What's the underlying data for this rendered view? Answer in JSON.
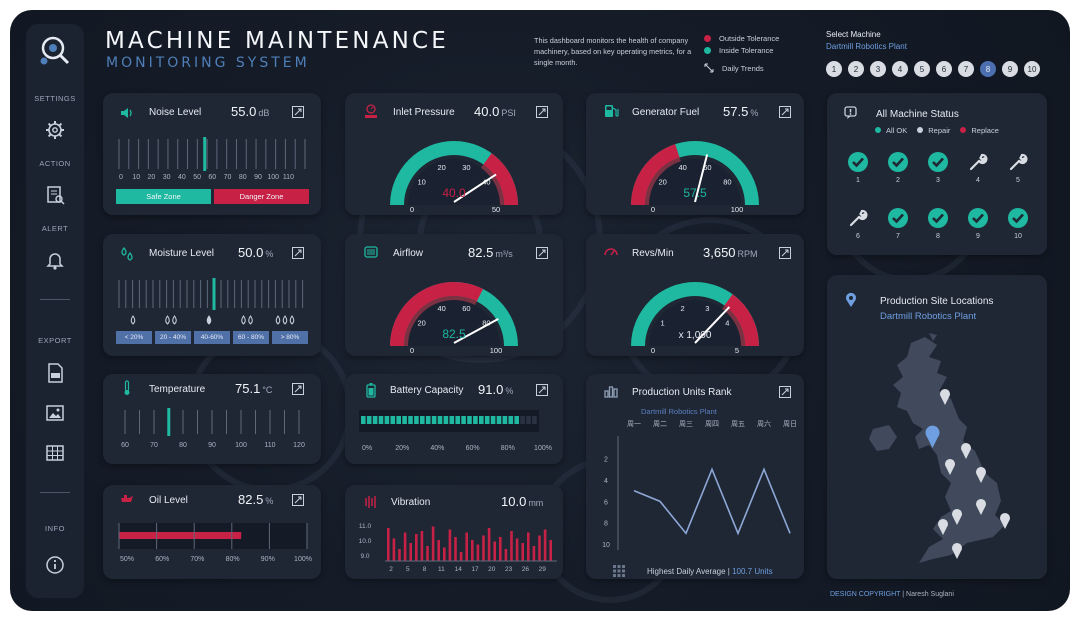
{
  "header": {
    "title": "MACHINE  MAINTENANCE",
    "subtitle": "MONITORING SYSTEM",
    "description": "This dashboard monitors the health of company machinery, based on key operating metrics, for a single month.",
    "legend": {
      "outside": "Outside Tolerance",
      "inside": "Inside Tolerance",
      "trends": "Daily Trends"
    }
  },
  "colors": {
    "accent_teal": "#1fb8a0",
    "accent_red": "#c72146",
    "accent_blue": "#6f9fe0",
    "card": "#1f2735"
  },
  "sidebar": {
    "settings": "SETTINGS",
    "action": "ACTION",
    "alert": "ALERT",
    "export": "EXPORT",
    "info": "INFO",
    "icons": [
      "gear-icon",
      "report-icon",
      "bell-icon",
      "pdf-icon",
      "image-icon",
      "table-icon",
      "info-icon"
    ]
  },
  "machine_select": {
    "label": "Select Machine",
    "plant": "Dartmill Robotics Plant",
    "machines": [
      "1",
      "2",
      "3",
      "4",
      "5",
      "6",
      "7",
      "8",
      "9",
      "10"
    ],
    "selected": "8"
  },
  "noise": {
    "title": "Noise Level",
    "value": "55.0",
    "unit": "dB",
    "ticks": [
      "0",
      "10",
      "20",
      "30",
      "40",
      "50",
      "60",
      "70",
      "80",
      "90",
      "100",
      "110"
    ],
    "level": 55,
    "max": 110,
    "safe": "Safe Zone",
    "danger": "Danger Zone"
  },
  "moisture": {
    "title": "Moisture Level",
    "value": "50.0",
    "unit": "%",
    "level": 50,
    "bins": [
      "< 20%",
      "20 - 40%",
      "40-60%",
      "60 - 80%",
      "> 80%"
    ]
  },
  "temperature": {
    "title": "Temperature",
    "value": "75.1",
    "unit": "°C",
    "level": 75.1,
    "ticks": [
      "60",
      "70",
      "80",
      "90",
      "100",
      "110",
      "120"
    ]
  },
  "oil": {
    "title": "Oil Level",
    "value": "82.5",
    "unit": "%",
    "level": 82.5,
    "ticks": [
      "50%",
      "60%",
      "70%",
      "80%",
      "90%",
      "100%"
    ]
  },
  "inlet": {
    "title": "Inlet Pressure",
    "value": "40.0",
    "unit": "PSI",
    "center": "40.0",
    "min": 0,
    "max": 50,
    "reading": 40,
    "ticks": [
      "0",
      "10",
      "20",
      "30",
      "40",
      "50"
    ],
    "tolerance": [
      35,
      50
    ]
  },
  "airflow": {
    "title": "Airflow",
    "value": "82.5",
    "unit": "m³/s",
    "center": "82.5",
    "min": 0,
    "max": 100,
    "reading": 82.5,
    "ticks": [
      "0",
      "20",
      "40",
      "60",
      "80",
      "100"
    ],
    "tolerance": [
      0,
      65
    ]
  },
  "battery": {
    "title": "Battery Capacity",
    "value": "91.0",
    "unit": "%",
    "level": 91,
    "ticks": [
      "0%",
      "20%",
      "40%",
      "60%",
      "80%",
      "100%"
    ]
  },
  "vibration": {
    "title": "Vibration",
    "value": "10.0",
    "unit": "mm",
    "yticks": [
      "11.0",
      "10.0",
      "9.0"
    ],
    "xticks": [
      "2",
      "5",
      "8",
      "11",
      "14",
      "17",
      "20",
      "23",
      "26",
      "29"
    ],
    "values": [
      10.8,
      10.1,
      9.4,
      10.5,
      9.8,
      10.4,
      10.6,
      9.6,
      10.9,
      10.0,
      9.5,
      10.7,
      10.2,
      9.2,
      10.5,
      10.0,
      9.7,
      10.3,
      10.8,
      9.9,
      10.2,
      9.4,
      10.6,
      10.1,
      9.8,
      10.5,
      9.6,
      10.3,
      10.7,
      10.0
    ]
  },
  "fuel": {
    "title": "Generator Fuel",
    "value": "57.5",
    "unit": "%",
    "center": "57.5",
    "min": 0,
    "max": 100,
    "reading": 57.5,
    "ticks": [
      "0",
      "20",
      "40",
      "60",
      "80",
      "100"
    ],
    "tolerance": [
      0,
      40
    ]
  },
  "revs": {
    "title": "Revs/Min",
    "value": "3,650",
    "unit": "RPM",
    "center": "x 1,000",
    "min": 0,
    "max": 5,
    "reading": 3.65,
    "ticks": [
      "0",
      "1",
      "2",
      "3",
      "4",
      "5"
    ],
    "tolerance": [
      3.5,
      5
    ]
  },
  "rank": {
    "title": "Production Units Rank",
    "plant": "Dartmill Robotics Plant",
    "days": [
      "周一",
      "周二",
      "周三",
      "周四",
      "周五",
      "周六",
      "周日"
    ],
    "yticks": [
      "2",
      "4",
      "6",
      "8",
      "10"
    ],
    "ranks": [
      5,
      6,
      9,
      3,
      9,
      3,
      9
    ],
    "footer_label": "Highest Daily Average",
    "footer_value": "100.7 Units"
  },
  "status": {
    "title": "All Machine Status",
    "all_ok": "All OK",
    "repair": "Repair",
    "replace": "Replace",
    "machines": [
      {
        "id": "1",
        "state": "ok"
      },
      {
        "id": "2",
        "state": "ok"
      },
      {
        "id": "3",
        "state": "ok"
      },
      {
        "id": "4",
        "state": "repair"
      },
      {
        "id": "5",
        "state": "repair"
      },
      {
        "id": "6",
        "state": "repair"
      },
      {
        "id": "7",
        "state": "ok"
      },
      {
        "id": "8",
        "state": "ok"
      },
      {
        "id": "9",
        "state": "ok"
      },
      {
        "id": "10",
        "state": "ok"
      }
    ]
  },
  "map": {
    "title": "Production Site Locations",
    "plant": "Dartmill Robotics Plant"
  },
  "copyright": {
    "label": "DESIGN COPYRIGHT",
    "sep": "|",
    "author": "Naresh Suglani"
  }
}
